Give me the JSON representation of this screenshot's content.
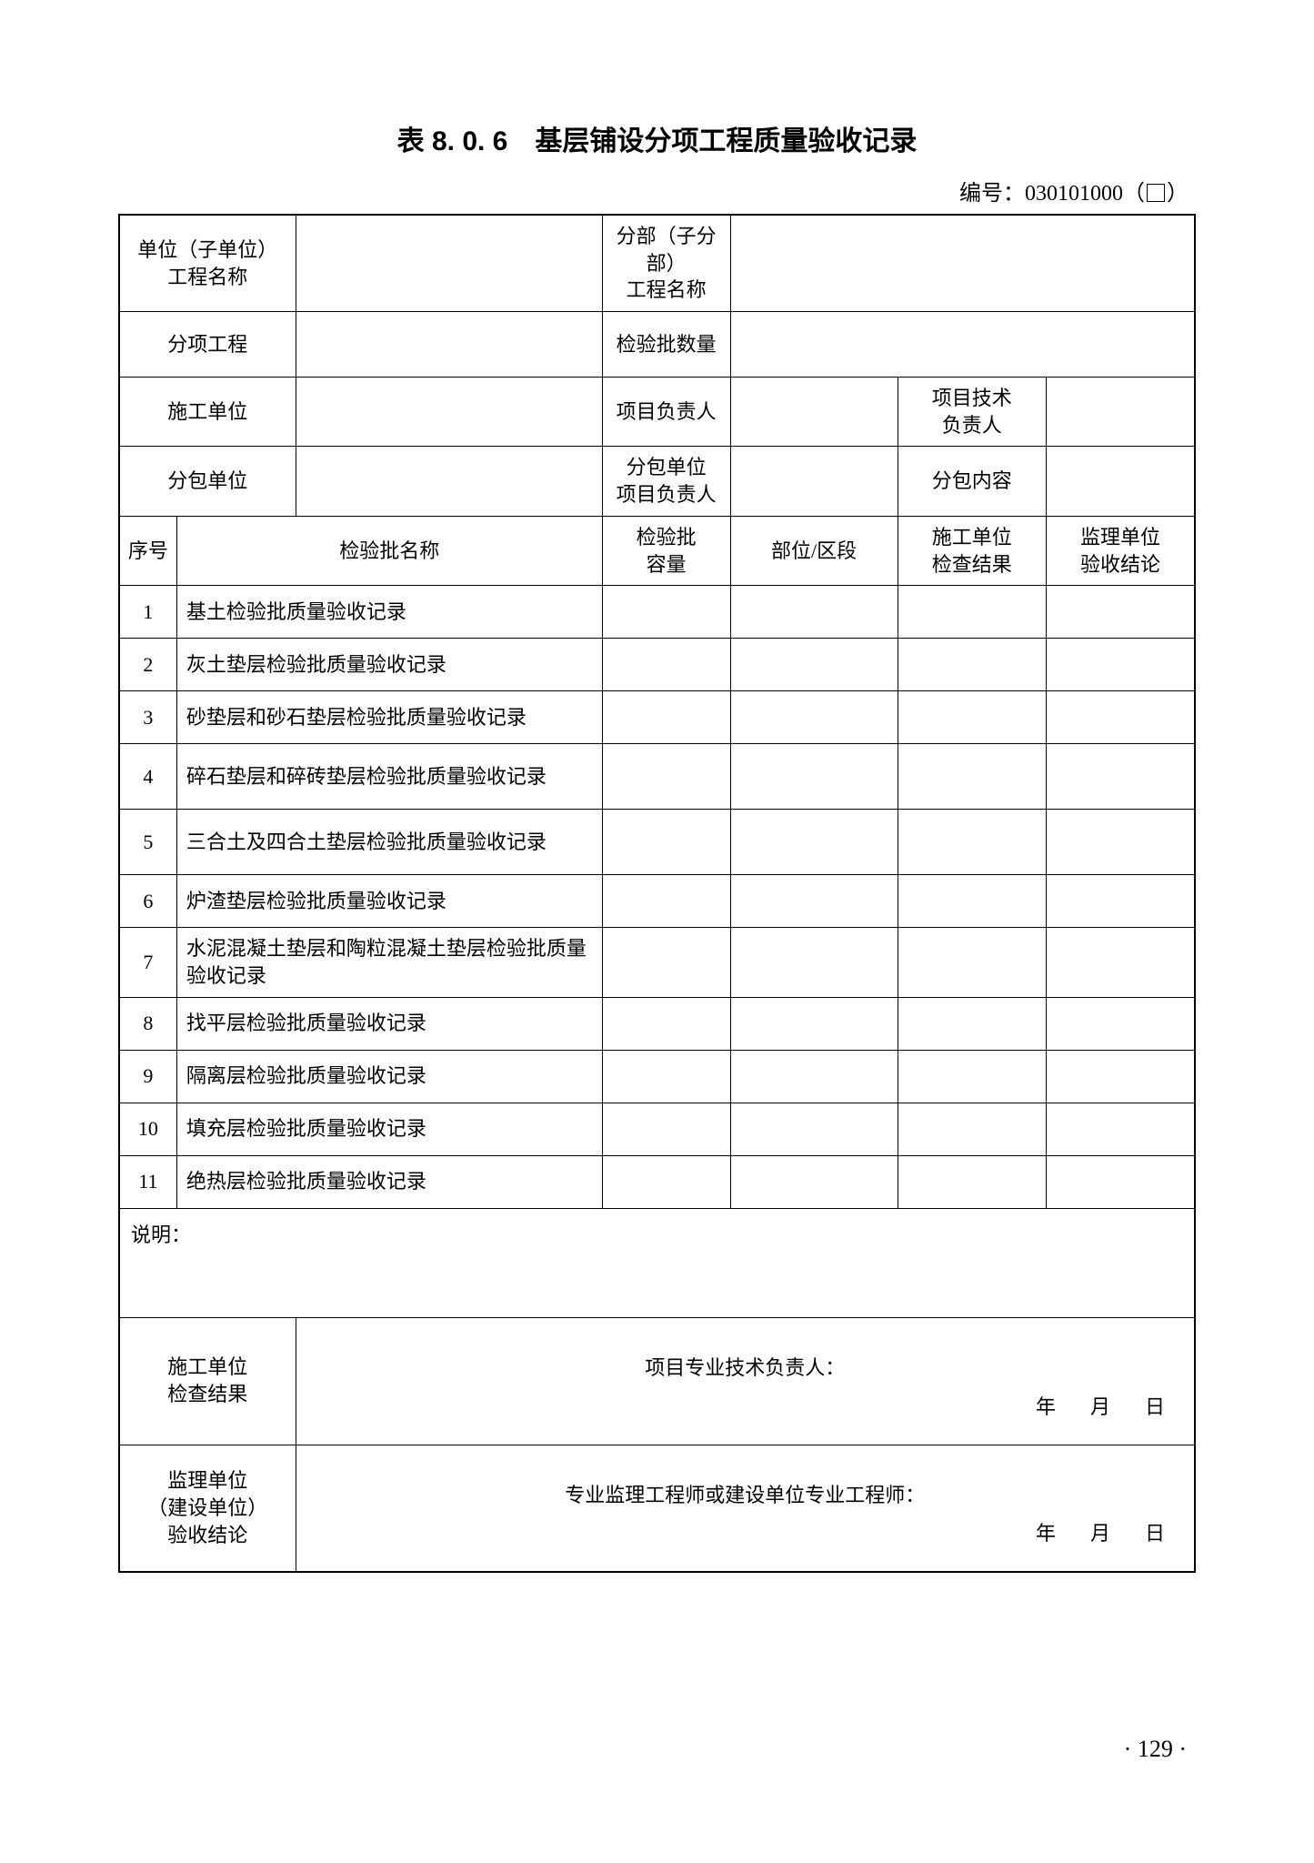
{
  "title": "表 8. 0. 6　基层铺设分项工程质量验收记录",
  "doc_number_prefix": "编号：030101000（",
  "doc_number_suffix": "）",
  "header_rows": {
    "unit_name_label": "单位（子单位）\n工程名称",
    "sub_unit_name_label": "分部（子分部）\n工程名称",
    "subitem_project_label": "分项工程",
    "batch_count_label": "检验批数量",
    "construction_unit_label": "施工单位",
    "project_leader_label": "项目负责人",
    "tech_leader_label": "项目技术\n负责人",
    "subcontractor_label": "分包单位",
    "subcontractor_leader_label": "分包单位\n项目负责人",
    "subcontract_content_label": "分包内容"
  },
  "columns": {
    "seq": "序号",
    "batch_name": "检验批名称",
    "capacity": "检验批\n容量",
    "section": "部位/区段",
    "construction_result": "施工单位\n检查结果",
    "supervision_conclusion": "监理单位\n验收结论"
  },
  "rows": [
    {
      "n": "1",
      "name": "基土检验批质量验收记录"
    },
    {
      "n": "2",
      "name": "灰土垫层检验批质量验收记录"
    },
    {
      "n": "3",
      "name": "砂垫层和砂石垫层检验批质量验收记录"
    },
    {
      "n": "4",
      "name": "碎石垫层和碎砖垫层检验批质量验收记录"
    },
    {
      "n": "5",
      "name": "三合土及四合土垫层检验批质量验收记录"
    },
    {
      "n": "6",
      "name": "炉渣垫层检验批质量验收记录"
    },
    {
      "n": "7",
      "name": "水泥混凝土垫层和陶粒混凝土垫层检验批质量验收记录"
    },
    {
      "n": "8",
      "name": "找平层检验批质量验收记录"
    },
    {
      "n": "9",
      "name": "隔离层检验批质量验收记录"
    },
    {
      "n": "10",
      "name": "填充层检验批质量验收记录"
    },
    {
      "n": "11",
      "name": "绝热层检验批质量验收记录"
    }
  ],
  "notes_label": "说明：",
  "signature": {
    "construction_label": "施工单位\n检查结果",
    "construction_signer": "项目专业技术负责人：",
    "supervision_label": "监理单位\n（建设单位）\n验收结论",
    "supervision_signer": "专业监理工程师或建设单位专业工程师：",
    "date_text": "年　月　日"
  },
  "page_number": "· 129 ·"
}
